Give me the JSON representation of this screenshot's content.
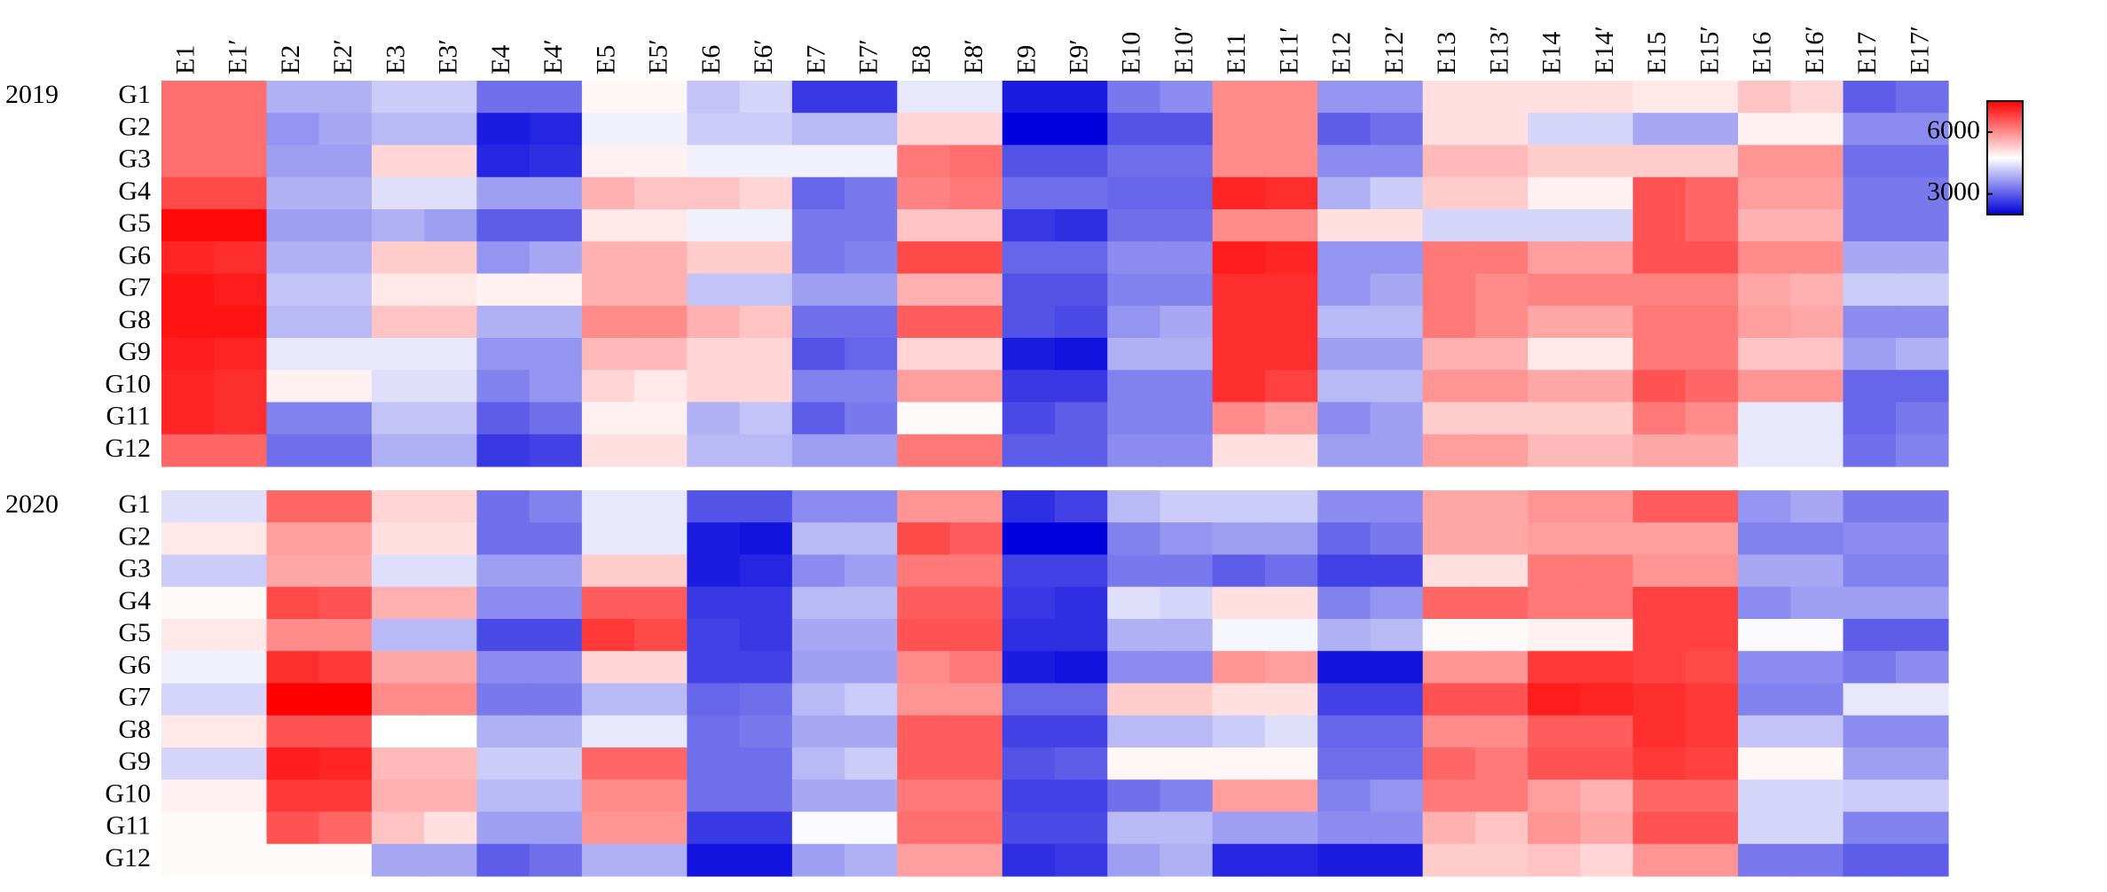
{
  "chart_data": [
    {
      "type": "heatmap",
      "title": "2019",
      "x": [
        "E1",
        "E1′",
        "E2",
        "E2′",
        "E3",
        "E3′",
        "E4",
        "E4′",
        "E5",
        "E5′",
        "E6",
        "E6′",
        "E7",
        "E7′",
        "E8",
        "E8′",
        "E9",
        "E9′",
        "E10",
        "E10′",
        "E11",
        "E11′",
        "E12",
        "E12′",
        "E13",
        "E13′",
        "E14",
        "E14′",
        "E15",
        "E15′",
        "E16",
        "E16′",
        "E17",
        "E17′"
      ],
      "y": [
        "G1",
        "G2",
        "G3",
        "G4",
        "G5",
        "G6",
        "G7",
        "G8",
        "G9",
        "G10",
        "G11",
        "G12"
      ],
      "zlim": [
        2000,
        7500
      ],
      "zticks": [
        3000,
        6000
      ],
      "colors": [
        "#0000dd",
        "#ffffff",
        "#ff0000"
      ],
      "values": [
        [
          6300,
          6300,
          3900,
          3900,
          4200,
          4200,
          3200,
          3200,
          4850,
          4850,
          4100,
          4300,
          2600,
          2600,
          4500,
          4500,
          2300,
          2300,
          3300,
          3500,
          6000,
          6000,
          3600,
          3600,
          5100,
          5100,
          5100,
          5100,
          5000,
          5000,
          5400,
          5200,
          3000,
          3200
        ],
        [
          6300,
          6300,
          3600,
          3800,
          4000,
          4000,
          2300,
          2400,
          4600,
          4600,
          4200,
          4200,
          4000,
          4000,
          5200,
          5200,
          2000,
          2000,
          2900,
          2900,
          6000,
          6000,
          3000,
          3200,
          5100,
          5100,
          4300,
          4300,
          3800,
          3800,
          4900,
          4900,
          3500,
          3500
        ],
        [
          6300,
          6300,
          3700,
          3700,
          5200,
          5200,
          2400,
          2500,
          4900,
          4900,
          4600,
          4600,
          4600,
          4600,
          6200,
          6300,
          2900,
          2900,
          3200,
          3200,
          6000,
          6000,
          3500,
          3500,
          5500,
          5500,
          5300,
          5300,
          5300,
          5300,
          5900,
          5900,
          3200,
          3200
        ],
        [
          6700,
          6700,
          3900,
          3900,
          4400,
          4400,
          3700,
          3700,
          5600,
          5400,
          5400,
          5200,
          3100,
          3300,
          6100,
          6200,
          3200,
          3200,
          3100,
          3100,
          7100,
          7000,
          3900,
          4200,
          5300,
          5300,
          4900,
          4900,
          6600,
          6400,
          5800,
          5800,
          3300,
          3300
        ],
        [
          7400,
          7400,
          3700,
          3700,
          3900,
          3700,
          3000,
          3000,
          5000,
          5000,
          4600,
          4600,
          3300,
          3300,
          5400,
          5400,
          2600,
          2500,
          3200,
          3200,
          6000,
          6000,
          5100,
          5100,
          4300,
          4300,
          4300,
          4300,
          6600,
          6400,
          5600,
          5600,
          3300,
          3300
        ],
        [
          7100,
          7000,
          3900,
          3900,
          5300,
          5300,
          3600,
          3800,
          5600,
          5600,
          5300,
          5300,
          3300,
          3400,
          6700,
          6700,
          3100,
          3100,
          3500,
          3500,
          7200,
          7100,
          3600,
          3600,
          6200,
          6200,
          5800,
          5800,
          6600,
          6600,
          6000,
          6000,
          3800,
          3800
        ],
        [
          7300,
          7200,
          4100,
          4100,
          5000,
          5000,
          4900,
          4900,
          5600,
          5600,
          4100,
          4100,
          3700,
          3700,
          5600,
          5600,
          2900,
          2900,
          3400,
          3400,
          7000,
          7000,
          3600,
          3800,
          6200,
          6000,
          6100,
          6100,
          6100,
          6100,
          5700,
          5600,
          4200,
          4200
        ],
        [
          7300,
          7300,
          4000,
          4000,
          5400,
          5400,
          3900,
          3900,
          6000,
          6000,
          5600,
          5400,
          3200,
          3200,
          6500,
          6500,
          2900,
          2800,
          3600,
          3800,
          7000,
          7000,
          4000,
          4000,
          6200,
          6000,
          5700,
          5700,
          6200,
          6200,
          5800,
          5700,
          3500,
          3500
        ],
        [
          7200,
          7100,
          4500,
          4500,
          4500,
          4500,
          3600,
          3600,
          5500,
          5500,
          5200,
          5200,
          2900,
          3100,
          5200,
          5200,
          2300,
          2200,
          3900,
          3900,
          7000,
          7000,
          3700,
          3700,
          5600,
          5600,
          5000,
          5000,
          6200,
          6200,
          5400,
          5400,
          3700,
          3900
        ],
        [
          7100,
          7000,
          4900,
          4900,
          4400,
          4400,
          3400,
          3600,
          5200,
          5000,
          5200,
          5200,
          3400,
          3400,
          5800,
          5800,
          2600,
          2600,
          3400,
          3400,
          7000,
          6800,
          4000,
          4000,
          5900,
          5900,
          5700,
          5700,
          6600,
          6400,
          5900,
          5900,
          3100,
          3100
        ],
        [
          7100,
          7000,
          3400,
          3400,
          4100,
          4100,
          3000,
          3200,
          4900,
          4900,
          3900,
          4100,
          3000,
          3300,
          4800,
          4800,
          2800,
          3000,
          3400,
          3400,
          6000,
          5800,
          3500,
          3700,
          5300,
          5300,
          5300,
          5300,
          6200,
          6000,
          4500,
          4500,
          3100,
          3300
        ],
        [
          6400,
          6400,
          3200,
          3200,
          3900,
          3900,
          2600,
          2700,
          5100,
          5100,
          4000,
          4000,
          3700,
          3700,
          6200,
          6200,
          3000,
          3000,
          3500,
          3500,
          5100,
          5100,
          3700,
          3700,
          5800,
          5800,
          5500,
          5500,
          5700,
          5700,
          4500,
          4500,
          3200,
          3400
        ]
      ]
    },
    {
      "type": "heatmap",
      "title": "2020",
      "y": [
        "G1",
        "G2",
        "G3",
        "G4",
        "G5",
        "G6",
        "G7",
        "G8",
        "G9",
        "G10",
        "G11",
        "G12"
      ],
      "values": [
        [
          4400,
          4400,
          6400,
          6400,
          5200,
          5200,
          3200,
          3400,
          4500,
          4500,
          2900,
          2900,
          3500,
          3500,
          5900,
          5900,
          2500,
          2700,
          4000,
          4200,
          4200,
          4200,
          3500,
          3500,
          5700,
          5700,
          5900,
          5900,
          6500,
          6500,
          3600,
          3800,
          3300,
          3300
        ],
        [
          5000,
          5000,
          5800,
          5800,
          5100,
          5100,
          3200,
          3200,
          4500,
          4500,
          2300,
          2200,
          4000,
          4000,
          6700,
          6500,
          2000,
          2000,
          3400,
          3600,
          3700,
          3700,
          3100,
          3300,
          5700,
          5700,
          5800,
          5800,
          5800,
          5800,
          3400,
          3400,
          3500,
          3500
        ],
        [
          4200,
          4200,
          5700,
          5700,
          4400,
          4400,
          3700,
          3700,
          5300,
          5300,
          2300,
          2400,
          3500,
          3700,
          6200,
          6200,
          2700,
          2700,
          3300,
          3300,
          3000,
          3200,
          2700,
          2700,
          5100,
          5100,
          6200,
          6200,
          5900,
          5900,
          3800,
          3800,
          3400,
          3400
        ],
        [
          4800,
          4800,
          6700,
          6600,
          5600,
          5600,
          3500,
          3500,
          6500,
          6500,
          2600,
          2600,
          4000,
          4000,
          6500,
          6500,
          2600,
          2500,
          4400,
          4300,
          5100,
          5100,
          3400,
          3600,
          6400,
          6400,
          6200,
          6200,
          6800,
          6800,
          3500,
          3700,
          3700,
          3700
        ],
        [
          5000,
          5000,
          6000,
          6000,
          4000,
          4000,
          2800,
          2800,
          6900,
          6700,
          2700,
          2600,
          3800,
          3800,
          6600,
          6600,
          2500,
          2500,
          3900,
          3900,
          4650,
          4650,
          3900,
          4000,
          4800,
          4800,
          4900,
          4900,
          6800,
          6800,
          4700,
          4700,
          3000,
          3000
        ],
        [
          4600,
          4600,
          7000,
          6900,
          5700,
          5700,
          3500,
          3500,
          5200,
          5200,
          2700,
          2700,
          3700,
          3700,
          6000,
          6200,
          2300,
          2200,
          3500,
          3500,
          5900,
          5800,
          2200,
          2200,
          5900,
          5900,
          6900,
          6900,
          6800,
          6700,
          3500,
          3500,
          3300,
          3500
        ],
        [
          4300,
          4300,
          7500,
          7500,
          6000,
          6000,
          3300,
          3300,
          4000,
          4000,
          3100,
          3200,
          4000,
          4200,
          5900,
          5900,
          3100,
          3100,
          5300,
          5300,
          5100,
          5100,
          2700,
          2700,
          6600,
          6600,
          7200,
          7100,
          7000,
          6900,
          3400,
          3400,
          4500,
          4500
        ],
        [
          5000,
          5000,
          6600,
          6600,
          4750,
          4750,
          3900,
          3900,
          4500,
          4500,
          3200,
          3300,
          3800,
          3800,
          6500,
          6500,
          2700,
          2700,
          4000,
          4000,
          4200,
          4400,
          3100,
          3100,
          6000,
          6000,
          6500,
          6500,
          7000,
          6900,
          4100,
          4100,
          3500,
          3500
        ],
        [
          4300,
          4300,
          7200,
          7100,
          5500,
          5500,
          4200,
          4200,
          6400,
          6400,
          3200,
          3200,
          4000,
          4200,
          6500,
          6500,
          2900,
          3000,
          4850,
          4850,
          4850,
          4850,
          3200,
          3200,
          6400,
          6200,
          6600,
          6600,
          6900,
          6800,
          4850,
          4850,
          3700,
          3700
        ],
        [
          4900,
          4900,
          6900,
          6900,
          5600,
          5600,
          4000,
          4000,
          6000,
          6000,
          3200,
          3200,
          3800,
          3800,
          6200,
          6200,
          2700,
          2700,
          3200,
          3400,
          5800,
          5800,
          3400,
          3600,
          6200,
          6200,
          5800,
          5600,
          6400,
          6400,
          4300,
          4300,
          4200,
          4200
        ],
        [
          4800,
          4800,
          6600,
          6400,
          5400,
          5100,
          3700,
          3700,
          5900,
          5900,
          2600,
          2600,
          4700,
          4700,
          6300,
          6300,
          2800,
          2800,
          4000,
          4000,
          3700,
          3700,
          3500,
          3500,
          5600,
          5400,
          5900,
          5700,
          6600,
          6600,
          4300,
          4300,
          3400,
          3400
        ],
        [
          4800,
          4800,
          4800,
          4800,
          3800,
          3800,
          3000,
          3200,
          3900,
          3900,
          2200,
          2200,
          3700,
          3900,
          5800,
          5800,
          2500,
          2600,
          3700,
          3900,
          2400,
          2400,
          2300,
          2300,
          5300,
          5300,
          5400,
          5200,
          5900,
          5900,
          3300,
          3300,
          3000,
          3000
        ]
      ]
    }
  ]
}
